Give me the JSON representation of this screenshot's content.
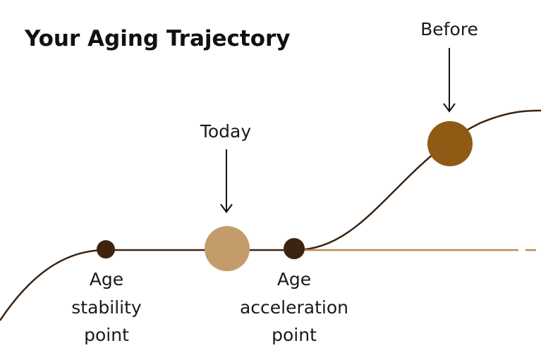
{
  "title": "Your Aging Trajectory",
  "markers": [
    {
      "label": "Today"
    },
    {
      "label": "Before"
    }
  ],
  "points": [
    {
      "lines": [
        "Age",
        "stability",
        "point"
      ]
    },
    {
      "lines": [
        "Age",
        "acceleration",
        "point"
      ]
    }
  ]
}
